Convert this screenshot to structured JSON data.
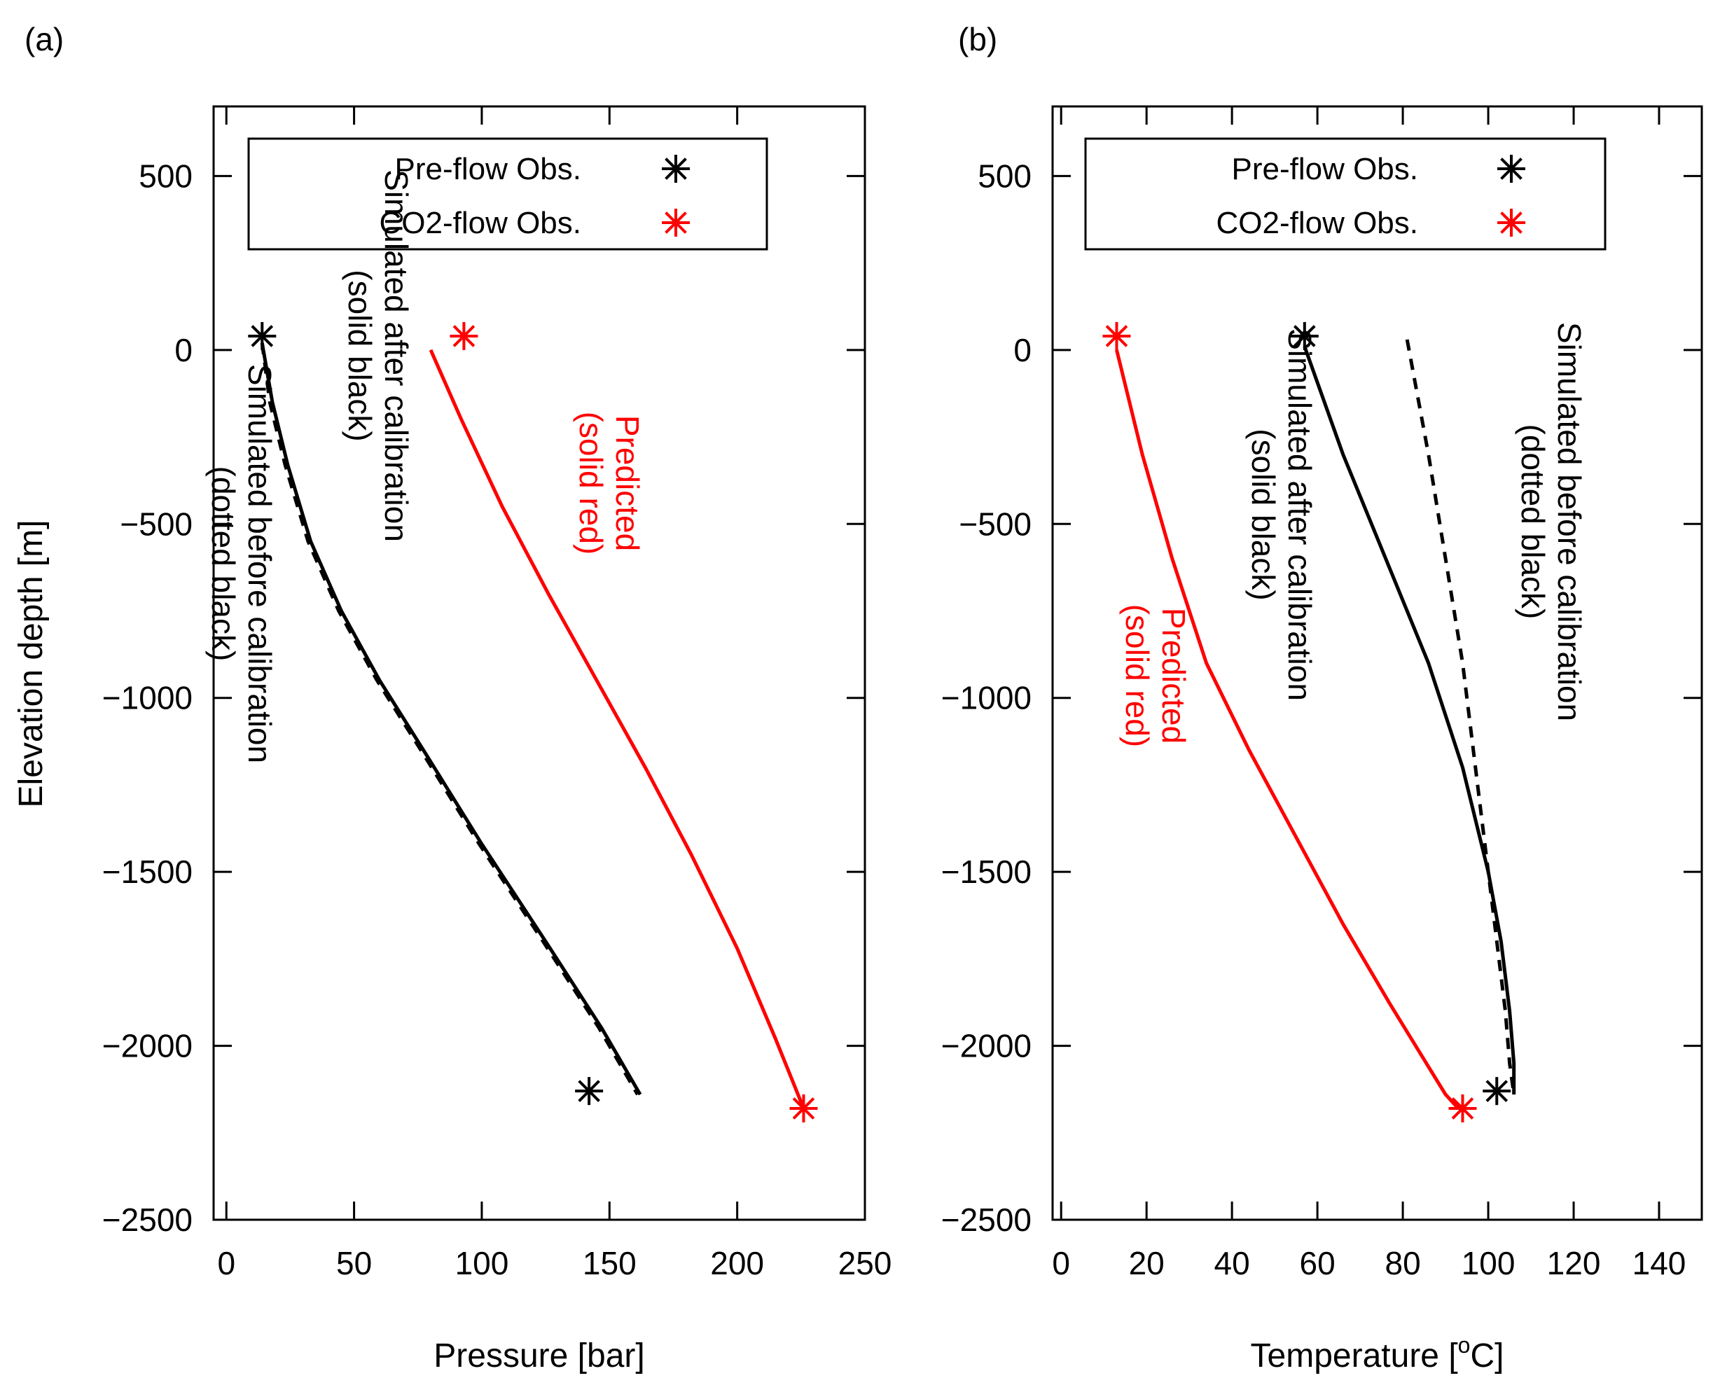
{
  "chart_data": [
    {
      "type": "line",
      "panel_label": "(a)",
      "xlabel": "Pressure [bar]",
      "ylabel": "Elevation depth [m]",
      "xlim": [
        -5,
        250
      ],
      "ylim": [
        -2500,
        700
      ],
      "xticks": [
        0,
        50,
        100,
        150,
        200,
        250
      ],
      "xtick_labels": [
        "0",
        "50",
        "100",
        "150",
        "200",
        "250"
      ],
      "yticks": [
        500,
        0,
        -500,
        -1000,
        -1500,
        -2000,
        -2500
      ],
      "ytick_labels": [
        "500",
        "0",
        "−500",
        "−1000",
        "−1500",
        "−2000",
        "−2500"
      ],
      "legend": {
        "position": "top-left",
        "entries": [
          {
            "label": "Pre-flow Obs.",
            "color": "#000000",
            "marker": "asterisk"
          },
          {
            "label": "CO2-flow Obs.",
            "color": "#ff0000",
            "marker": "asterisk"
          }
        ]
      },
      "series": [
        {
          "name": "Simulated after calibration",
          "style": "solid",
          "color": "#000000",
          "x": [
            14,
            18,
            24,
            33,
            45,
            60,
            78,
            100,
            125,
            147,
            162
          ],
          "y": [
            20,
            -150,
            -330,
            -550,
            -750,
            -950,
            -1160,
            -1420,
            -1700,
            -1950,
            -2140
          ]
        },
        {
          "name": "Simulated before calibration",
          "style": "dashed",
          "color": "#000000",
          "x": [
            14,
            17,
            23,
            32,
            44,
            59,
            77,
            99,
            124,
            146,
            161
          ],
          "y": [
            20,
            -150,
            -330,
            -550,
            -750,
            -950,
            -1160,
            -1420,
            -1700,
            -1950,
            -2140
          ]
        },
        {
          "name": "Predicted",
          "style": "solid",
          "color": "#ff0000",
          "x": [
            80,
            92,
            108,
            126,
            145,
            164,
            182,
            200,
            215,
            226
          ],
          "y": [
            0,
            -200,
            -450,
            -700,
            -950,
            -1200,
            -1450,
            -1720,
            -1980,
            -2180
          ]
        }
      ],
      "points": [
        {
          "series": "Pre-flow Obs.",
          "color": "#000000",
          "x": [
            14,
            142
          ],
          "y": [
            40,
            -2130
          ]
        },
        {
          "series": "CO2-flow Obs.",
          "color": "#ff0000",
          "x": [
            93,
            226
          ],
          "y": [
            40,
            -2180
          ]
        }
      ],
      "annotations": [
        {
          "lines": [
            "Simulated after calibration",
            "(solid black)"
          ],
          "color": "#000000"
        },
        {
          "lines": [
            "Simulated before calibration",
            "(dotted black)"
          ],
          "color": "#000000"
        },
        {
          "lines": [
            "Predicted",
            "(solid red)"
          ],
          "color": "#ff0000"
        }
      ]
    },
    {
      "type": "line",
      "panel_label": "(b)",
      "xlabel": "Temperature [°C]",
      "xlabel_main": "Temperature [",
      "xlabel_sup": "o",
      "xlabel_end": "C]",
      "ylabel": "",
      "xlim": [
        -2,
        150
      ],
      "ylim": [
        -2500,
        700
      ],
      "xticks": [
        0,
        20,
        40,
        60,
        80,
        100,
        120,
        140
      ],
      "xtick_labels": [
        "0",
        "20",
        "40",
        "60",
        "80",
        "100",
        "120",
        "140"
      ],
      "yticks": [
        500,
        0,
        -500,
        -1000,
        -1500,
        -2000,
        -2500
      ],
      "ytick_labels": [
        "500",
        "0",
        "−500",
        "−1000",
        "−1500",
        "−2000",
        "−2500"
      ],
      "legend": {
        "position": "top-left",
        "entries": [
          {
            "label": "Pre-flow Obs.",
            "color": "#000000",
            "marker": "asterisk"
          },
          {
            "label": "CO2-flow Obs.",
            "color": "#ff0000",
            "marker": "asterisk"
          }
        ]
      },
      "series": [
        {
          "name": "Simulated after calibration",
          "style": "solid",
          "color": "#000000",
          "x": [
            57,
            66,
            76,
            86,
            94,
            100,
            103,
            105,
            106,
            106
          ],
          "y": [
            10,
            -300,
            -600,
            -900,
            -1200,
            -1500,
            -1700,
            -1900,
            -2050,
            -2140
          ]
        },
        {
          "name": "Simulated before calibration",
          "style": "dashed",
          "color": "#000000",
          "x": [
            81,
            86,
            90,
            94,
            97,
            100,
            102,
            104,
            105,
            106
          ],
          "y": [
            30,
            -300,
            -600,
            -900,
            -1200,
            -1500,
            -1700,
            -1900,
            -2050,
            -2140
          ]
        },
        {
          "name": "Predicted",
          "style": "solid",
          "color": "#ff0000",
          "x": [
            13,
            19,
            26,
            34,
            44,
            55,
            66,
            77,
            86,
            90,
            93
          ],
          "y": [
            0,
            -300,
            -600,
            -900,
            -1150,
            -1400,
            -1650,
            -1880,
            -2060,
            -2140,
            -2180
          ]
        }
      ],
      "points": [
        {
          "series": "Pre-flow Obs.",
          "color": "#000000",
          "x": [
            57,
            102
          ],
          "y": [
            40,
            -2130
          ]
        },
        {
          "series": "CO2-flow Obs.",
          "color": "#ff0000",
          "x": [
            13,
            94
          ],
          "y": [
            40,
            -2180
          ]
        }
      ],
      "annotations": [
        {
          "lines": [
            "Simulated after calibration",
            "(solid black)"
          ],
          "color": "#000000"
        },
        {
          "lines": [
            "Simulated before calibration",
            "(dotted black)"
          ],
          "color": "#000000"
        },
        {
          "lines": [
            "Predicted",
            "(solid red)"
          ],
          "color": "#ff0000"
        }
      ]
    }
  ]
}
